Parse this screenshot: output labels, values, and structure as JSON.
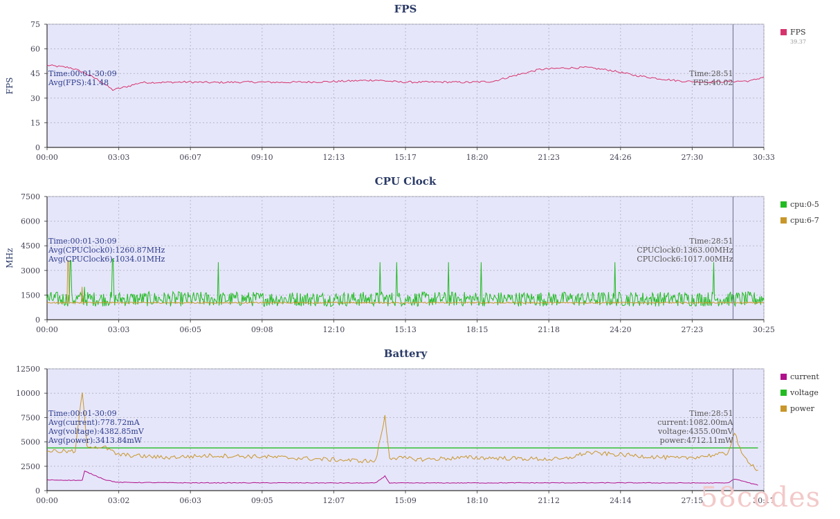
{
  "charts": [
    {
      "key": "fps",
      "title": "FPS",
      "ylabel": "FPS",
      "ylim": [
        0,
        75
      ],
      "yticks": [
        0,
        15,
        30,
        45,
        60,
        75
      ],
      "xticks": [
        "00:00",
        "03:03",
        "06:07",
        "09:10",
        "12:13",
        "15:17",
        "18:20",
        "21:23",
        "24:26",
        "27:30",
        "30:33"
      ],
      "cursor_fraction": 0.957,
      "info_left": [
        "Time:00:01-30:09",
        "Avg(FPS):41.48"
      ],
      "info_right": [
        "Time:28:51",
        "FPS:40.02"
      ],
      "legend": [
        {
          "name": "FPS",
          "value": "39.37",
          "color": "#d6336c"
        }
      ]
    },
    {
      "key": "cpu",
      "title": "CPU Clock",
      "ylabel": "MHz",
      "ylim": [
        0,
        7500
      ],
      "yticks": [
        0,
        1500,
        3000,
        4500,
        6000,
        7500
      ],
      "xticks": [
        "00:00",
        "03:03",
        "06:05",
        "09:08",
        "12:10",
        "15:13",
        "18:15",
        "21:18",
        "24:20",
        "27:23",
        "30:25"
      ],
      "cursor_fraction": 0.957,
      "info_left": [
        "Time:00:01-30:09",
        "Avg(CPUClock0):1260.87MHz",
        "Avg(CPUClock6):1034.01MHz"
      ],
      "info_right": [
        "Time:28:51",
        "CPUClock0:1363.00MHz",
        "CPUClock6:1017.00MHz"
      ],
      "legend": [
        {
          "name": "cpu:0-5",
          "color": "#22bb22"
        },
        {
          "name": "cpu:6-7",
          "color": "#c8962a"
        }
      ]
    },
    {
      "key": "battery",
      "title": "Battery",
      "ylabel": "",
      "ylim": [
        0,
        12500
      ],
      "yticks": [
        0,
        2500,
        5000,
        7500,
        10000,
        12500
      ],
      "xticks": [
        "00:00",
        "03:02",
        "06:03",
        "09:05",
        "12:07",
        "15:09",
        "18:10",
        "21:12",
        "24:14",
        "27:15",
        "30:17"
      ],
      "cursor_fraction": 0.957,
      "info_left": [
        "Time:00:01-30:09",
        "Avg(current):778.72mA",
        "Avg(voltage):4382.85mV",
        "Avg(power):3413.84mW"
      ],
      "info_right": [
        "Time:28:51",
        "current:1082.00mA",
        "voltage:4355.00mV",
        "power:4712.11mW"
      ],
      "legend": [
        {
          "name": "current",
          "color": "#b0108c"
        },
        {
          "name": "voltage",
          "color": "#22bb22"
        },
        {
          "name": "power",
          "color": "#c8962a"
        }
      ]
    }
  ],
  "chart_data": [
    {
      "type": "line",
      "title": "FPS",
      "ylabel": "FPS",
      "ylim": [
        0,
        75
      ],
      "x_unit": "minutes",
      "series": [
        {
          "name": "FPS",
          "color": "#d6336c",
          "points": [
            [
              0,
              50
            ],
            [
              1,
              48.5
            ],
            [
              1.5,
              46
            ],
            [
              2.2,
              41
            ],
            [
              2.8,
              35
            ],
            [
              3.4,
              37
            ],
            [
              4,
              39.5
            ],
            [
              5,
              39.6
            ],
            [
              6,
              39.8
            ],
            [
              7,
              39.5
            ],
            [
              8,
              39.7
            ],
            [
              9,
              39.8
            ],
            [
              10,
              39.6
            ],
            [
              11,
              39.8
            ],
            [
              12,
              40
            ],
            [
              13,
              40.5
            ],
            [
              14,
              41
            ],
            [
              15,
              39.8
            ],
            [
              16,
              39.7
            ],
            [
              17,
              39.8
            ],
            [
              18,
              39.6
            ],
            [
              19,
              40.2
            ],
            [
              20,
              44
            ],
            [
              21,
              47.5
            ],
            [
              22,
              48.3
            ],
            [
              23,
              48.6
            ],
            [
              24,
              47
            ],
            [
              25,
              44
            ],
            [
              26,
              42
            ],
            [
              27,
              40.4
            ],
            [
              28,
              39.8
            ],
            [
              29,
              40.1
            ],
            [
              30,
              40.5
            ],
            [
              30.55,
              43
            ]
          ]
        }
      ]
    },
    {
      "type": "line",
      "title": "CPU Clock",
      "ylabel": "MHz",
      "ylim": [
        0,
        7500
      ],
      "x_unit": "minutes",
      "series": [
        {
          "name": "cpu:0-5",
          "color": "#22bb22",
          "baseline": 1260,
          "spikes": [
            [
              1.0,
              3600
            ],
            [
              1.6,
              2000
            ],
            [
              2.8,
              3700
            ],
            [
              7.3,
              3500
            ],
            [
              14.2,
              3500
            ],
            [
              14.9,
              3500
            ],
            [
              17.1,
              3500
            ],
            [
              18.5,
              3500
            ],
            [
              24.2,
              3500
            ],
            [
              28.4,
              3500
            ]
          ]
        },
        {
          "name": "cpu:6-7",
          "color": "#c8962a",
          "baseline": 1034,
          "spikes": [
            [
              0.9,
              3600
            ],
            [
              1.5,
              2000
            ]
          ]
        }
      ]
    },
    {
      "type": "line",
      "title": "Battery",
      "ylim": [
        0,
        12500
      ],
      "x_unit": "minutes",
      "series": [
        {
          "name": "current",
          "color": "#b0108c",
          "points": [
            [
              0,
              1100
            ],
            [
              1.5,
              1050
            ],
            [
              1.6,
              2000
            ],
            [
              2.5,
              1100
            ],
            [
              3,
              850
            ],
            [
              6,
              800
            ],
            [
              10,
              800
            ],
            [
              14,
              780
            ],
            [
              14.4,
              1500
            ],
            [
              14.6,
              780
            ],
            [
              20,
              800
            ],
            [
              25,
              800
            ],
            [
              29,
              780
            ],
            [
              29.3,
              1200
            ],
            [
              30.3,
              550
            ]
          ]
        },
        {
          "name": "voltage",
          "color": "#22bb22",
          "points": [
            [
              0,
              4382
            ],
            [
              30.3,
              4382
            ]
          ]
        },
        {
          "name": "power",
          "color": "#c8962a",
          "points": [
            [
              0,
              4100
            ],
            [
              1.2,
              4000
            ],
            [
              1.5,
              10200
            ],
            [
              1.7,
              4600
            ],
            [
              2.5,
              4400
            ],
            [
              3,
              3700
            ],
            [
              5,
              3400
            ],
            [
              7,
              3600
            ],
            [
              9,
              3500
            ],
            [
              12,
              3200
            ],
            [
              14,
              3000
            ],
            [
              14.4,
              7600
            ],
            [
              14.6,
              3400
            ],
            [
              16,
              3200
            ],
            [
              18,
              3400
            ],
            [
              20,
              3300
            ],
            [
              22,
              3200
            ],
            [
              23,
              3900
            ],
            [
              25,
              3600
            ],
            [
              27,
              3300
            ],
            [
              29,
              3800
            ],
            [
              29.3,
              6000
            ],
            [
              29.6,
              3700
            ],
            [
              30.3,
              2100
            ]
          ]
        }
      ]
    }
  ]
}
